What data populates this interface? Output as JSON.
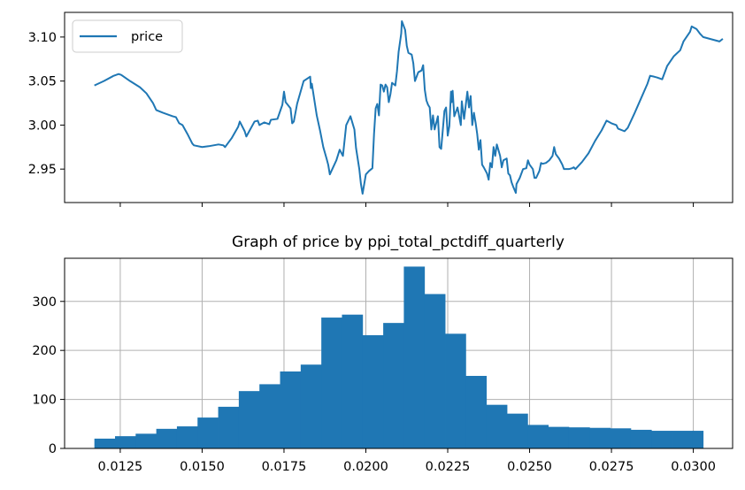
{
  "chart_data": [
    {
      "type": "line",
      "title": "",
      "xlabel": "",
      "ylabel": "",
      "xlim": [
        0.0108,
        0.0312
      ],
      "ylim": [
        2.912,
        3.128
      ],
      "grid": false,
      "legend_position": "top-left",
      "x_ticks": [
        0.0125,
        0.015,
        0.0175,
        0.02,
        0.0225,
        0.025,
        0.0275,
        0.03
      ],
      "x_tick_labels_visible": false,
      "y_ticks": [
        2.95,
        3.0,
        3.05,
        3.1
      ],
      "y_tick_labels": [
        "2.95",
        "3.00",
        "3.05",
        "3.10"
      ],
      "series": [
        {
          "name": "price",
          "color": "#1f77b4",
          "points": [
            [
              0.01171,
              3.045
            ],
            [
              0.012,
              3.05
            ],
            [
              0.0123,
              3.056
            ],
            [
              0.01245,
              3.058
            ],
            [
              0.01253,
              3.057
            ],
            [
              0.0128,
              3.05
            ],
            [
              0.0131,
              3.043
            ],
            [
              0.0133,
              3.036
            ],
            [
              0.0135,
              3.025
            ],
            [
              0.0136,
              3.017
            ],
            [
              0.0138,
              3.014
            ],
            [
              0.0141,
              3.01
            ],
            [
              0.0142,
              3.009
            ],
            [
              0.0143,
              3.002
            ],
            [
              0.0144,
              3.0
            ],
            [
              0.01455,
              2.99
            ],
            [
              0.0147,
              2.979
            ],
            [
              0.01475,
              2.977
            ],
            [
              0.015,
              2.975
            ],
            [
              0.0152,
              2.976
            ],
            [
              0.0155,
              2.978
            ],
            [
              0.01565,
              2.977
            ],
            [
              0.0157,
              2.975
            ],
            [
              0.0159,
              2.985
            ],
            [
              0.0161,
              2.998
            ],
            [
              0.01615,
              3.004
            ],
            [
              0.0163,
              2.993
            ],
            [
              0.01635,
              2.987
            ],
            [
              0.0166,
              3.004
            ],
            [
              0.0167,
              3.005
            ],
            [
              0.01675,
              3.0
            ],
            [
              0.0169,
              3.003
            ],
            [
              0.01705,
              3.001
            ],
            [
              0.0171,
              3.006
            ],
            [
              0.0173,
              3.007
            ],
            [
              0.01745,
              3.023
            ],
            [
              0.0175,
              3.038
            ],
            [
              0.01755,
              3.026
            ],
            [
              0.0177,
              3.019
            ],
            [
              0.01775,
              3.002
            ],
            [
              0.0178,
              3.004
            ],
            [
              0.0179,
              3.024
            ],
            [
              0.0181,
              3.05
            ],
            [
              0.0183,
              3.055
            ],
            [
              0.01832,
              3.042
            ],
            [
              0.01835,
              3.047
            ],
            [
              0.0185,
              3.011
            ],
            [
              0.0186,
              2.994
            ],
            [
              0.0187,
              2.975
            ],
            [
              0.0188,
              2.962
            ],
            [
              0.01885,
              2.955
            ],
            [
              0.0189,
              2.944
            ],
            [
              0.0191,
              2.96
            ],
            [
              0.0192,
              2.972
            ],
            [
              0.0193,
              2.965
            ],
            [
              0.0194,
              3.0
            ],
            [
              0.01953,
              3.01
            ],
            [
              0.01965,
              2.995
            ],
            [
              0.0197,
              2.974
            ],
            [
              0.0198,
              2.95
            ],
            [
              0.01985,
              2.933
            ],
            [
              0.0199,
              2.922
            ],
            [
              0.02,
              2.944
            ],
            [
              0.0201,
              2.948
            ],
            [
              0.0202,
              2.951
            ],
            [
              0.02025,
              2.99
            ],
            [
              0.0203,
              3.019
            ],
            [
              0.02035,
              3.024
            ],
            [
              0.0204,
              3.011
            ],
            [
              0.02045,
              3.046
            ],
            [
              0.0205,
              3.045
            ],
            [
              0.02055,
              3.038
            ],
            [
              0.0206,
              3.046
            ],
            [
              0.02065,
              3.043
            ],
            [
              0.0207,
              3.026
            ],
            [
              0.02075,
              3.035
            ],
            [
              0.0208,
              3.048
            ],
            [
              0.0209,
              3.045
            ],
            [
              0.02095,
              3.061
            ],
            [
              0.021,
              3.083
            ],
            [
              0.02108,
              3.104
            ],
            [
              0.0211,
              3.118
            ],
            [
              0.0212,
              3.108
            ],
            [
              0.02125,
              3.09
            ],
            [
              0.0213,
              3.082
            ],
            [
              0.0214,
              3.08
            ],
            [
              0.02145,
              3.07
            ],
            [
              0.0215,
              3.05
            ],
            [
              0.0216,
              3.06
            ],
            [
              0.0217,
              3.062
            ],
            [
              0.02175,
              3.068
            ],
            [
              0.0218,
              3.04
            ],
            [
              0.02185,
              3.028
            ],
            [
              0.0219,
              3.023
            ],
            [
              0.02195,
              3.02
            ],
            [
              0.022,
              2.995
            ],
            [
              0.02205,
              3.011
            ],
            [
              0.0221,
              2.995
            ],
            [
              0.0222,
              3.01
            ],
            [
              0.02225,
              2.975
            ],
            [
              0.0223,
              2.973
            ],
            [
              0.0224,
              3.016
            ],
            [
              0.02245,
              3.02
            ],
            [
              0.0225,
              2.988
            ],
            [
              0.02255,
              2.999
            ],
            [
              0.0226,
              3.038
            ],
            [
              0.02262,
              3.026
            ],
            [
              0.02265,
              3.039
            ],
            [
              0.0227,
              3.01
            ],
            [
              0.0228,
              3.02
            ],
            [
              0.0229,
              3.0
            ],
            [
              0.02293,
              3.027
            ],
            [
              0.023,
              3.007
            ],
            [
              0.0231,
              3.038
            ],
            [
              0.02315,
              3.02
            ],
            [
              0.0232,
              3.033
            ],
            [
              0.02325,
              3.0
            ],
            [
              0.0233,
              3.014
            ],
            [
              0.02335,
              3.003
            ],
            [
              0.0234,
              2.99
            ],
            [
              0.02345,
              2.972
            ],
            [
              0.0235,
              2.983
            ],
            [
              0.02355,
              2.955
            ],
            [
              0.0236,
              2.952
            ],
            [
              0.0237,
              2.945
            ],
            [
              0.02375,
              2.938
            ],
            [
              0.0238,
              2.957
            ],
            [
              0.02385,
              2.952
            ],
            [
              0.0239,
              2.975
            ],
            [
              0.02395,
              2.965
            ],
            [
              0.024,
              2.978
            ],
            [
              0.0241,
              2.965
            ],
            [
              0.02415,
              2.952
            ],
            [
              0.0242,
              2.96
            ],
            [
              0.0243,
              2.962
            ],
            [
              0.02435,
              2.945
            ],
            [
              0.0244,
              2.943
            ],
            [
              0.02445,
              2.935
            ],
            [
              0.0245,
              2.93
            ],
            [
              0.02458,
              2.923
            ],
            [
              0.0246,
              2.933
            ],
            [
              0.0247,
              2.94
            ],
            [
              0.0248,
              2.95
            ],
            [
              0.0249,
              2.951
            ],
            [
              0.02495,
              2.96
            ],
            [
              0.025,
              2.955
            ],
            [
              0.0251,
              2.95
            ],
            [
              0.02515,
              2.94
            ],
            [
              0.0252,
              2.94
            ],
            [
              0.0253,
              2.948
            ],
            [
              0.02535,
              2.957
            ],
            [
              0.0254,
              2.956
            ],
            [
              0.0255,
              2.957
            ],
            [
              0.0256,
              2.96
            ],
            [
              0.0257,
              2.965
            ],
            [
              0.02575,
              2.975
            ],
            [
              0.0258,
              2.967
            ],
            [
              0.0259,
              2.962
            ],
            [
              0.026,
              2.955
            ],
            [
              0.02605,
              2.95
            ],
            [
              0.0262,
              2.95
            ],
            [
              0.0263,
              2.951
            ],
            [
              0.02635,
              2.952
            ],
            [
              0.0264,
              2.95
            ],
            [
              0.0266,
              2.958
            ],
            [
              0.0268,
              2.968
            ],
            [
              0.027,
              2.982
            ],
            [
              0.0272,
              2.994
            ],
            [
              0.02735,
              3.005
            ],
            [
              0.0275,
              3.002
            ],
            [
              0.02765,
              3.0
            ],
            [
              0.0277,
              2.996
            ],
            [
              0.0279,
              2.993
            ],
            [
              0.028,
              2.997
            ],
            [
              0.0282,
              3.013
            ],
            [
              0.0284,
              3.03
            ],
            [
              0.0286,
              3.047
            ],
            [
              0.02868,
              3.056
            ],
            [
              0.0288,
              3.055
            ],
            [
              0.0289,
              3.054
            ],
            [
              0.02905,
              3.052
            ],
            [
              0.0292,
              3.067
            ],
            [
              0.0294,
              3.078
            ],
            [
              0.0296,
              3.085
            ],
            [
              0.0297,
              3.095
            ],
            [
              0.0299,
              3.106
            ],
            [
              0.02995,
              3.112
            ],
            [
              0.0301,
              3.109
            ],
            [
              0.0302,
              3.104
            ],
            [
              0.0303,
              3.1
            ],
            [
              0.0305,
              3.098
            ],
            [
              0.0307,
              3.096
            ],
            [
              0.0308,
              3.095
            ],
            [
              0.0309,
              3.098
            ],
            [
              0.02995,
              3.112
            ]
          ]
        }
      ]
    },
    {
      "type": "bar",
      "title": "Graph of price by ppi_total_pctdiff_quarterly",
      "xlabel": "",
      "ylabel": "",
      "xlim": [
        0.0108,
        0.0312
      ],
      "ylim": [
        0,
        388
      ],
      "grid": true,
      "bar_color": "#1f77b4",
      "x_ticks": [
        0.0125,
        0.015,
        0.0175,
        0.02,
        0.0225,
        0.025,
        0.0275,
        0.03
      ],
      "x_tick_labels": [
        "0.0125",
        "0.0150",
        "0.0175",
        "0.0200",
        "0.0225",
        "0.0250",
        "0.0275",
        "0.0300"
      ],
      "y_ticks": [
        0,
        100,
        200,
        300
      ],
      "y_tick_labels": [
        "0",
        "100",
        "200",
        "300"
      ],
      "bins": [
        {
          "x0": 0.01171,
          "x1": 0.01234,
          "count": 20
        },
        {
          "x0": 0.01234,
          "x1": 0.01297,
          "count": 25
        },
        {
          "x0": 0.01297,
          "x1": 0.0136,
          "count": 30
        },
        {
          "x0": 0.0136,
          "x1": 0.01423,
          "count": 40
        },
        {
          "x0": 0.01423,
          "x1": 0.01486,
          "count": 45
        },
        {
          "x0": 0.01486,
          "x1": 0.01549,
          "count": 63
        },
        {
          "x0": 0.01549,
          "x1": 0.01612,
          "count": 85
        },
        {
          "x0": 0.01612,
          "x1": 0.01675,
          "count": 117
        },
        {
          "x0": 0.01675,
          "x1": 0.01738,
          "count": 131
        },
        {
          "x0": 0.01738,
          "x1": 0.01801,
          "count": 157
        },
        {
          "x0": 0.01801,
          "x1": 0.01864,
          "count": 171
        },
        {
          "x0": 0.01864,
          "x1": 0.01927,
          "count": 267
        },
        {
          "x0": 0.01927,
          "x1": 0.0199,
          "count": 273
        },
        {
          "x0": 0.0199,
          "x1": 0.02053,
          "count": 231
        },
        {
          "x0": 0.02053,
          "x1": 0.02116,
          "count": 256
        },
        {
          "x0": 0.02116,
          "x1": 0.02179,
          "count": 371
        },
        {
          "x0": 0.02179,
          "x1": 0.02242,
          "count": 315
        },
        {
          "x0": 0.02242,
          "x1": 0.02305,
          "count": 234
        },
        {
          "x0": 0.02305,
          "x1": 0.02368,
          "count": 148
        },
        {
          "x0": 0.02368,
          "x1": 0.02431,
          "count": 89
        },
        {
          "x0": 0.02431,
          "x1": 0.02494,
          "count": 71
        },
        {
          "x0": 0.02494,
          "x1": 0.02557,
          "count": 48
        },
        {
          "x0": 0.02557,
          "x1": 0.0262,
          "count": 44
        },
        {
          "x0": 0.0262,
          "x1": 0.02683,
          "count": 43
        },
        {
          "x0": 0.02683,
          "x1": 0.02746,
          "count": 42
        },
        {
          "x0": 0.02746,
          "x1": 0.02809,
          "count": 41
        },
        {
          "x0": 0.02809,
          "x1": 0.02872,
          "count": 38
        },
        {
          "x0": 0.02872,
          "x1": 0.02935,
          "count": 36
        },
        {
          "x0": 0.02935,
          "x1": 0.02998,
          "count": 36
        },
        {
          "x0": 0.02998,
          "x1": 0.0303,
          "count": 36
        }
      ]
    }
  ]
}
